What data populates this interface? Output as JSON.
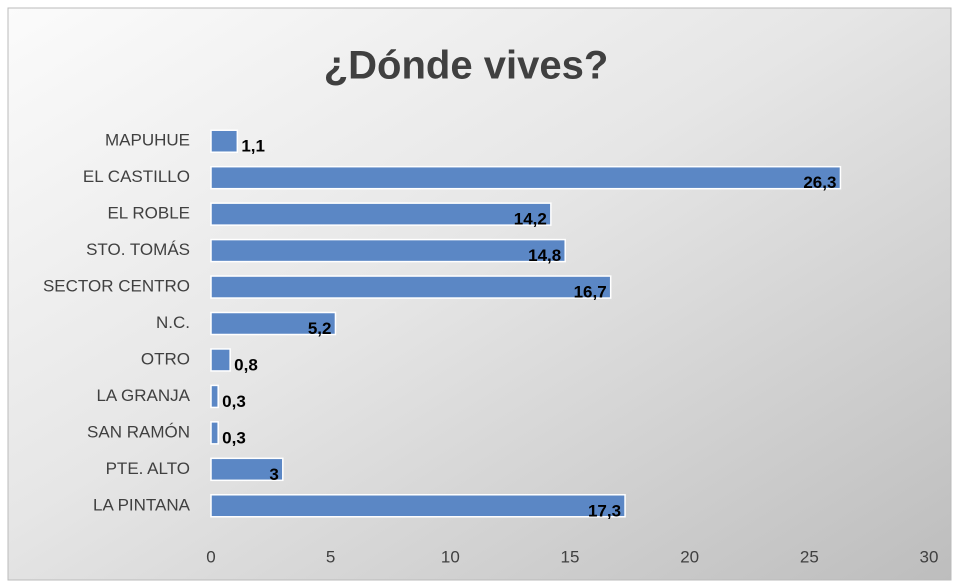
{
  "chart_data": {
    "type": "bar",
    "orientation": "horizontal",
    "title": "¿Dónde vives?",
    "categories": [
      "MAPUHUE",
      "EL CASTILLO",
      "EL ROBLE",
      "STO. TOMÁS",
      "SECTOR CENTRO",
      "N.C.",
      "OTRO",
      "LA GRANJA",
      "SAN RAMÓN",
      "PTE. ALTO",
      "LA PINTANA"
    ],
    "values": [
      1.1,
      26.3,
      14.2,
      14.8,
      16.7,
      5.2,
      0.8,
      0.3,
      0.3,
      3,
      17.3
    ],
    "value_labels": [
      "1,1",
      "26,3",
      "14,2",
      "14,8",
      "16,7",
      "5,2",
      "0,8",
      "0,3",
      "0,3",
      "3",
      "17,3"
    ],
    "color": "#5b87c5",
    "xlim": [
      0,
      30
    ],
    "xticks": [
      0,
      5,
      10,
      15,
      20,
      25,
      30
    ],
    "grid": true
  }
}
